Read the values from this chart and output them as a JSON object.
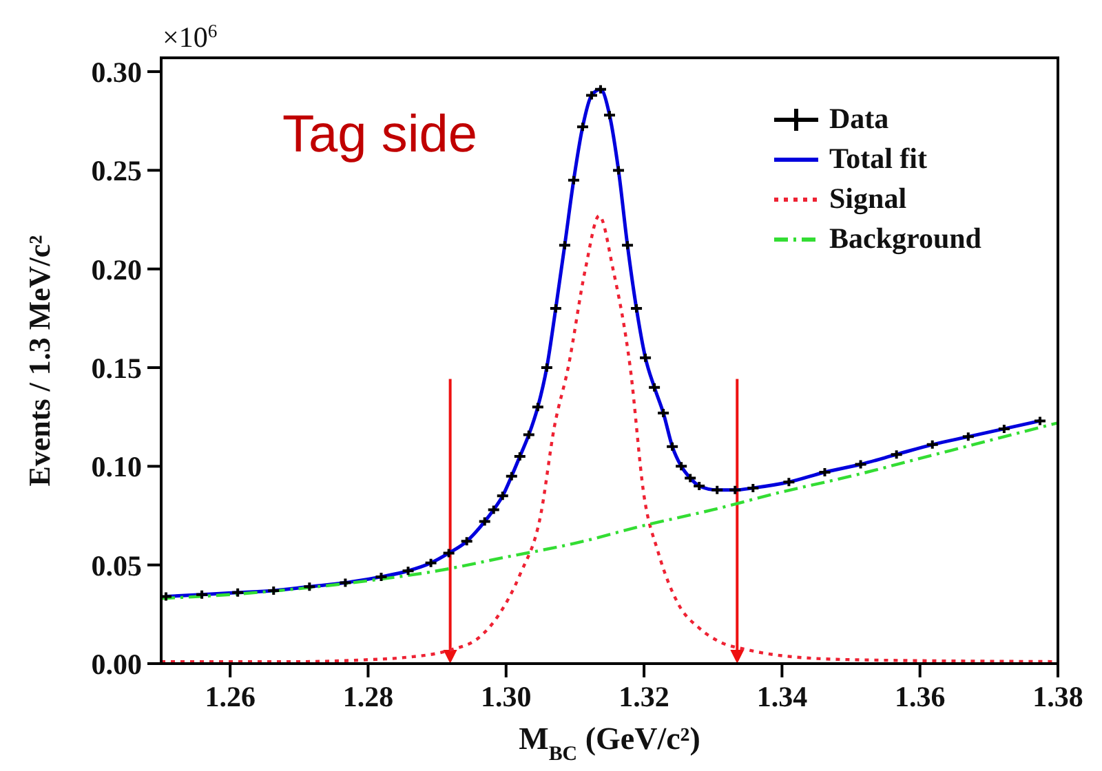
{
  "chart_data": {
    "type": "line",
    "xlabel": "M$_{BC}$ (GeV/c²)",
    "ylabel": "Events / 1.3 MeV/c²",
    "annotations": [
      "Tag side",
      "×10$^{6}$"
    ],
    "xlim": [
      1.25,
      1.38
    ],
    "xticks": [
      1.26,
      1.28,
      {
        "value": 1.3,
        "label": "1.30"
      },
      1.32,
      1.34,
      1.36,
      1.38
    ],
    "ylim": [
      0,
      0.307
    ],
    "yticks": [
      {
        "value": 0,
        "label": "0.00"
      },
      0.05,
      {
        "value": 0.1,
        "label": "0.10"
      },
      0.15,
      {
        "value": 0.2,
        "label": "0.20"
      },
      0.25,
      {
        "value": 0.3,
        "label": "0.30"
      }
    ],
    "x": [
      1.2507,
      1.2559,
      1.2611,
      1.2663,
      1.2715,
      1.2767,
      1.2819,
      1.2858,
      1.2891,
      1.2917,
      1.2943,
      1.2969,
      1.2982,
      1.2995,
      1.3008,
      1.302,
      1.3033,
      1.3046,
      1.3059,
      1.3072,
      1.3085,
      1.3098,
      1.3111,
      1.3124,
      1.3137,
      1.315,
      1.3163,
      1.3176,
      1.3189,
      1.3202,
      1.3215,
      1.3228,
      1.3241,
      1.3254,
      1.3267,
      1.328,
      1.3306,
      1.3332,
      1.3358,
      1.341,
      1.3462,
      1.3514,
      1.3566,
      1.3618,
      1.367,
      1.3722,
      1.3774
    ],
    "series": [
      {
        "name": "Data",
        "type": "scatter",
        "marker": "cross",
        "color": "#000000",
        "values": [
          0.034,
          0.035,
          0.036,
          0.037,
          0.039,
          0.041,
          0.044,
          0.047,
          0.051,
          0.056,
          0.062,
          0.072,
          0.078,
          0.085,
          0.095,
          0.105,
          0.116,
          0.13,
          0.15,
          0.18,
          0.212,
          0.245,
          0.272,
          0.288,
          0.291,
          0.278,
          0.25,
          0.212,
          0.18,
          0.155,
          0.14,
          0.127,
          0.11,
          0.1,
          0.094,
          0.09,
          0.088,
          0.088,
          0.089,
          0.092,
          0.097,
          0.101,
          0.106,
          0.111,
          0.115,
          0.119,
          0.123
        ]
      },
      {
        "name": "Total fit",
        "type": "line",
        "color": "#0000dd",
        "line_style": "solid",
        "values": [
          0.034,
          0.035,
          0.036,
          0.037,
          0.039,
          0.041,
          0.044,
          0.047,
          0.051,
          0.056,
          0.062,
          0.072,
          0.078,
          0.085,
          0.095,
          0.105,
          0.116,
          0.13,
          0.15,
          0.18,
          0.212,
          0.245,
          0.272,
          0.288,
          0.291,
          0.278,
          0.25,
          0.212,
          0.18,
          0.155,
          0.14,
          0.127,
          0.11,
          0.1,
          0.094,
          0.09,
          0.088,
          0.088,
          0.089,
          0.092,
          0.097,
          0.101,
          0.106,
          0.111,
          0.115,
          0.119,
          0.123
        ]
      },
      {
        "name": "Signal",
        "type": "line",
        "color": "#ee2233",
        "line_style": "dotted",
        "x": [
          1.25,
          1.27,
          1.28,
          1.285,
          1.292,
          1.296,
          1.299,
          1.302,
          1.305,
          1.307,
          1.309,
          1.3115,
          1.3135,
          1.3155,
          1.318,
          1.32,
          1.322,
          1.325,
          1.328,
          1.331,
          1.335,
          1.34,
          1.35,
          1.38
        ],
        "values": [
          0.001,
          0.001,
          0.002,
          0.003,
          0.007,
          0.013,
          0.025,
          0.045,
          0.075,
          0.12,
          0.15,
          0.2,
          0.227,
          0.2,
          0.15,
          0.085,
          0.057,
          0.03,
          0.018,
          0.011,
          0.007,
          0.004,
          0.002,
          0.001
        ]
      },
      {
        "name": "Background",
        "type": "line",
        "color": "#33dd33",
        "line_style": "dashdot",
        "x": [
          1.25,
          1.26,
          1.27,
          1.28,
          1.29,
          1.3,
          1.31,
          1.32,
          1.33,
          1.34,
          1.35,
          1.36,
          1.37,
          1.38
        ],
        "values": [
          0.033,
          0.035,
          0.038,
          0.042,
          0.047,
          0.054,
          0.061,
          0.07,
          0.078,
          0.087,
          0.095,
          0.104,
          0.113,
          0.122
        ]
      }
    ],
    "ref_lines": [
      {
        "axis": "x",
        "value": 1.2919,
        "color": "#ee1111"
      },
      {
        "axis": "x",
        "value": 1.3335,
        "color": "#ee1111"
      }
    ],
    "legend": "top right"
  }
}
